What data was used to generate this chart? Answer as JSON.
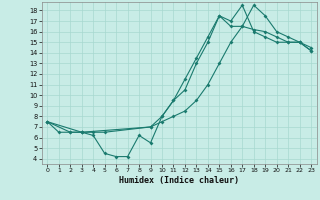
{
  "xlabel": "Humidex (Indice chaleur)",
  "background_color": "#c8ece6",
  "grid_color": "#a8d8d0",
  "line_color": "#1a7a6e",
  "xlim": [
    -0.5,
    23.5
  ],
  "ylim": [
    3.5,
    18.8
  ],
  "yticks": [
    4,
    5,
    6,
    7,
    8,
    9,
    10,
    11,
    12,
    13,
    14,
    15,
    16,
    17,
    18
  ],
  "xticks": [
    0,
    1,
    2,
    3,
    4,
    5,
    6,
    7,
    8,
    9,
    10,
    11,
    12,
    13,
    14,
    15,
    16,
    17,
    18,
    19,
    20,
    21,
    22,
    23
  ],
  "line1_x": [
    0,
    1,
    2,
    3,
    4,
    5,
    6,
    7,
    8,
    9,
    10,
    11,
    12,
    13,
    14,
    15,
    16,
    17,
    18,
    19,
    20,
    21,
    22,
    23
  ],
  "line1_y": [
    7.5,
    6.5,
    6.5,
    6.5,
    6.2,
    4.5,
    4.2,
    4.2,
    6.2,
    5.5,
    8.0,
    9.5,
    10.5,
    13.0,
    15.0,
    17.5,
    17.0,
    18.5,
    16.0,
    15.5,
    15.0,
    15.0,
    15.0,
    14.5
  ],
  "line2_x": [
    0,
    2,
    3,
    4,
    5,
    9,
    10,
    11,
    12,
    13,
    14,
    15,
    16,
    17,
    18,
    19,
    20,
    21,
    22,
    23
  ],
  "line2_y": [
    7.5,
    6.5,
    6.5,
    6.5,
    6.5,
    7.0,
    7.5,
    8.0,
    8.5,
    9.5,
    11.0,
    13.0,
    15.0,
    16.5,
    18.5,
    17.5,
    16.0,
    15.5,
    15.0,
    14.2
  ],
  "line3_x": [
    0,
    3,
    9,
    10,
    11,
    12,
    13,
    14,
    15,
    16,
    17,
    18,
    19,
    20,
    21,
    22,
    23
  ],
  "line3_y": [
    7.5,
    6.5,
    7.0,
    8.0,
    9.5,
    11.5,
    13.5,
    15.5,
    17.5,
    16.5,
    16.5,
    16.2,
    16.0,
    15.5,
    15.0,
    15.0,
    14.2
  ]
}
